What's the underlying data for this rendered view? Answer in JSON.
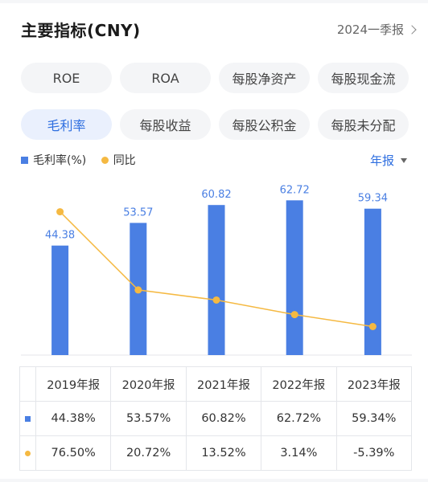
{
  "header": {
    "title": "主要指标(CNY)",
    "period": "2024一季报"
  },
  "tabs": [
    [
      {
        "label": "ROE",
        "active": false
      },
      {
        "label": "ROA",
        "active": false
      },
      {
        "label": "每股净资产",
        "active": false
      },
      {
        "label": "每股现金流",
        "active": false
      }
    ],
    [
      {
        "label": "毛利率",
        "active": true
      },
      {
        "label": "每股收益",
        "active": false
      },
      {
        "label": "每股公积金",
        "active": false
      },
      {
        "label": "每股未分配",
        "active": false
      }
    ]
  ],
  "legend": {
    "series1": "毛利率(%)",
    "series2": "同比",
    "period_select": "年报"
  },
  "colors": {
    "bar": "#4a7fe3",
    "line": "#f5b942",
    "positive": "#e0443e",
    "negative": "#22a36b",
    "accent": "#2f6fe0"
  },
  "chart_data": {
    "type": "bar",
    "categories": [
      "2019年报",
      "2020年报",
      "2021年报",
      "2022年报",
      "2023年报"
    ],
    "series": [
      {
        "name": "毛利率(%)",
        "type": "bar",
        "values": [
          44.38,
          53.57,
          60.82,
          62.72,
          59.34
        ]
      },
      {
        "name": "同比",
        "type": "line",
        "values": [
          76.5,
          20.72,
          13.52,
          3.14,
          -5.39
        ]
      }
    ]
  },
  "table": {
    "headers": [
      "2019年报",
      "2020年报",
      "2021年报",
      "2022年报",
      "2023年报"
    ],
    "row1": [
      "44.38%",
      "53.57%",
      "60.82%",
      "62.72%",
      "59.34%"
    ],
    "row2": [
      "76.50%",
      "20.72%",
      "13.52%",
      "3.14%",
      "-5.39%"
    ]
  }
}
